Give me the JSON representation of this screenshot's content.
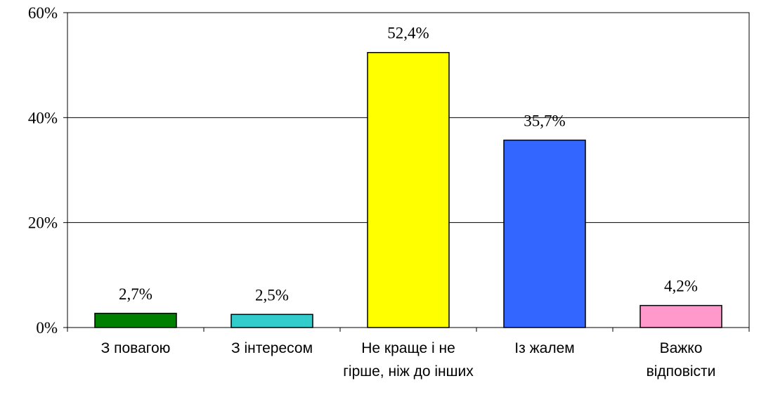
{
  "chart_data": {
    "type": "bar",
    "categories": [
      [
        "З повагою"
      ],
      [
        "З інтересом"
      ],
      [
        "Не краще і не",
        "гірше, ніж до інших"
      ],
      [
        "Із жалем"
      ],
      [
        "Важко",
        "відповісти"
      ]
    ],
    "values": [
      2.7,
      2.5,
      52.4,
      35.7,
      4.2
    ],
    "value_labels": [
      "2,7%",
      "2,5%",
      "52,4%",
      "35,7%",
      "4,2%"
    ],
    "colors": [
      "#008000",
      "#33cccc",
      "#ffff00",
      "#3366ff",
      "#ff99cc"
    ],
    "ylim": [
      0,
      60
    ],
    "yticks": [
      0,
      20,
      40,
      60
    ],
    "ytick_labels": [
      "0%",
      "20%",
      "40%",
      "60%"
    ],
    "grid": true,
    "title": "",
    "xlabel": "",
    "ylabel": ""
  }
}
